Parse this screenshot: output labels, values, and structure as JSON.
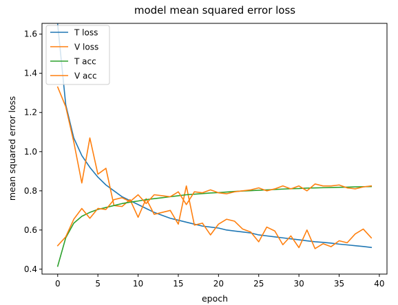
{
  "chart_data": {
    "type": "line",
    "title": "model mean squared error loss",
    "xlabel": "epoch",
    "ylabel": "mean squared error loss",
    "xlim": [
      -1.95,
      40.95
    ],
    "ylim": [
      0.375,
      1.655
    ],
    "xticks": [
      0,
      5,
      10,
      15,
      20,
      25,
      30,
      35,
      40
    ],
    "yticks": [
      0.4,
      0.6,
      0.8,
      1.0,
      1.2,
      1.4,
      1.6
    ],
    "ytick_labels": [
      "0.4",
      "0.6",
      "0.8",
      "1.0",
      "1.2",
      "1.4",
      "1.6"
    ],
    "grid": false,
    "legend_position": "upper-left",
    "x": [
      0,
      1,
      2,
      3,
      4,
      5,
      6,
      7,
      8,
      9,
      10,
      11,
      12,
      13,
      14,
      15,
      16,
      17,
      18,
      19,
      20,
      21,
      22,
      23,
      24,
      25,
      26,
      27,
      28,
      29,
      30,
      31,
      32,
      33,
      34,
      35,
      36,
      37,
      38,
      39
    ],
    "series": [
      {
        "name": "T loss",
        "color": "#1f77b4",
        "values": [
          1.65,
          1.24,
          1.07,
          0.98,
          0.92,
          0.87,
          0.83,
          0.8,
          0.77,
          0.75,
          0.73,
          0.71,
          0.69,
          0.675,
          0.66,
          0.65,
          0.64,
          0.63,
          0.62,
          0.615,
          0.61,
          0.6,
          0.595,
          0.59,
          0.585,
          0.575,
          0.57,
          0.565,
          0.56,
          0.555,
          0.55,
          0.545,
          0.54,
          0.537,
          0.533,
          0.528,
          0.524,
          0.52,
          0.516,
          0.511
        ]
      },
      {
        "name": "V loss",
        "color": "#ff7f0e",
        "values": [
          1.33,
          1.23,
          1.05,
          0.84,
          1.07,
          0.885,
          0.915,
          0.725,
          0.72,
          0.755,
          0.665,
          0.76,
          0.68,
          0.69,
          0.7,
          0.63,
          0.825,
          0.625,
          0.635,
          0.575,
          0.63,
          0.655,
          0.645,
          0.605,
          0.59,
          0.54,
          0.615,
          0.595,
          0.525,
          0.57,
          0.51,
          0.6,
          0.505,
          0.53,
          0.515,
          0.545,
          0.535,
          0.58,
          0.605,
          0.56
        ]
      },
      {
        "name": "T acc",
        "color": "#2ca02c",
        "values": [
          0.415,
          0.56,
          0.635,
          0.67,
          0.69,
          0.705,
          0.715,
          0.725,
          0.735,
          0.742,
          0.748,
          0.755,
          0.76,
          0.765,
          0.77,
          0.775,
          0.78,
          0.783,
          0.786,
          0.789,
          0.791,
          0.794,
          0.797,
          0.799,
          0.801,
          0.803,
          0.805,
          0.807,
          0.809,
          0.811,
          0.812,
          0.814,
          0.815,
          0.816,
          0.817,
          0.818,
          0.819,
          0.82,
          0.821,
          0.822
        ]
      },
      {
        "name": "V acc",
        "color": "#ff7f0e",
        "values": [
          0.52,
          0.565,
          0.655,
          0.71,
          0.66,
          0.71,
          0.705,
          0.755,
          0.765,
          0.745,
          0.78,
          0.735,
          0.78,
          0.775,
          0.77,
          0.795,
          0.73,
          0.795,
          0.79,
          0.805,
          0.79,
          0.785,
          0.795,
          0.8,
          0.805,
          0.815,
          0.8,
          0.81,
          0.825,
          0.81,
          0.825,
          0.8,
          0.835,
          0.825,
          0.825,
          0.83,
          0.815,
          0.81,
          0.82,
          0.825
        ]
      }
    ]
  }
}
